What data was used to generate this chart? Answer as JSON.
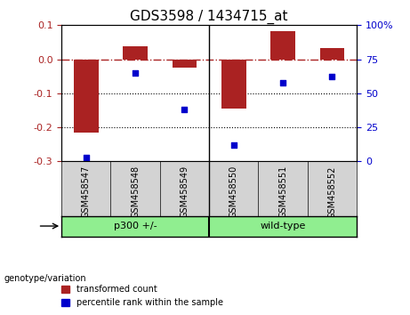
{
  "title": "GDS3598 / 1434715_at",
  "samples": [
    "GSM458547",
    "GSM458548",
    "GSM458549",
    "GSM458550",
    "GSM458551",
    "GSM458552"
  ],
  "bar_values": [
    -0.215,
    0.038,
    -0.025,
    -0.145,
    0.082,
    0.032
  ],
  "scatter_values": [
    3,
    65,
    38,
    12,
    58,
    62
  ],
  "ylim_left": [
    -0.3,
    0.1
  ],
  "ylim_right": [
    0,
    100
  ],
  "yticks_left": [
    -0.3,
    -0.2,
    -0.1,
    0.0,
    0.1
  ],
  "yticks_right": [
    0,
    25,
    50,
    75,
    100
  ],
  "bar_color": "#aa2222",
  "scatter_color": "#0000cc",
  "dotted_lines": [
    -0.1,
    -0.2
  ],
  "xlabel": "genotype/variation",
  "group_labels": [
    "p300 +/-",
    "wild-type"
  ],
  "group_color": "#90ee90",
  "label_bg_color": "#d3d3d3",
  "legend_items": [
    {
      "label": "transformed count",
      "color": "#aa2222"
    },
    {
      "label": "percentile rank within the sample",
      "color": "#0000cc"
    }
  ],
  "background_color": "#ffffff"
}
